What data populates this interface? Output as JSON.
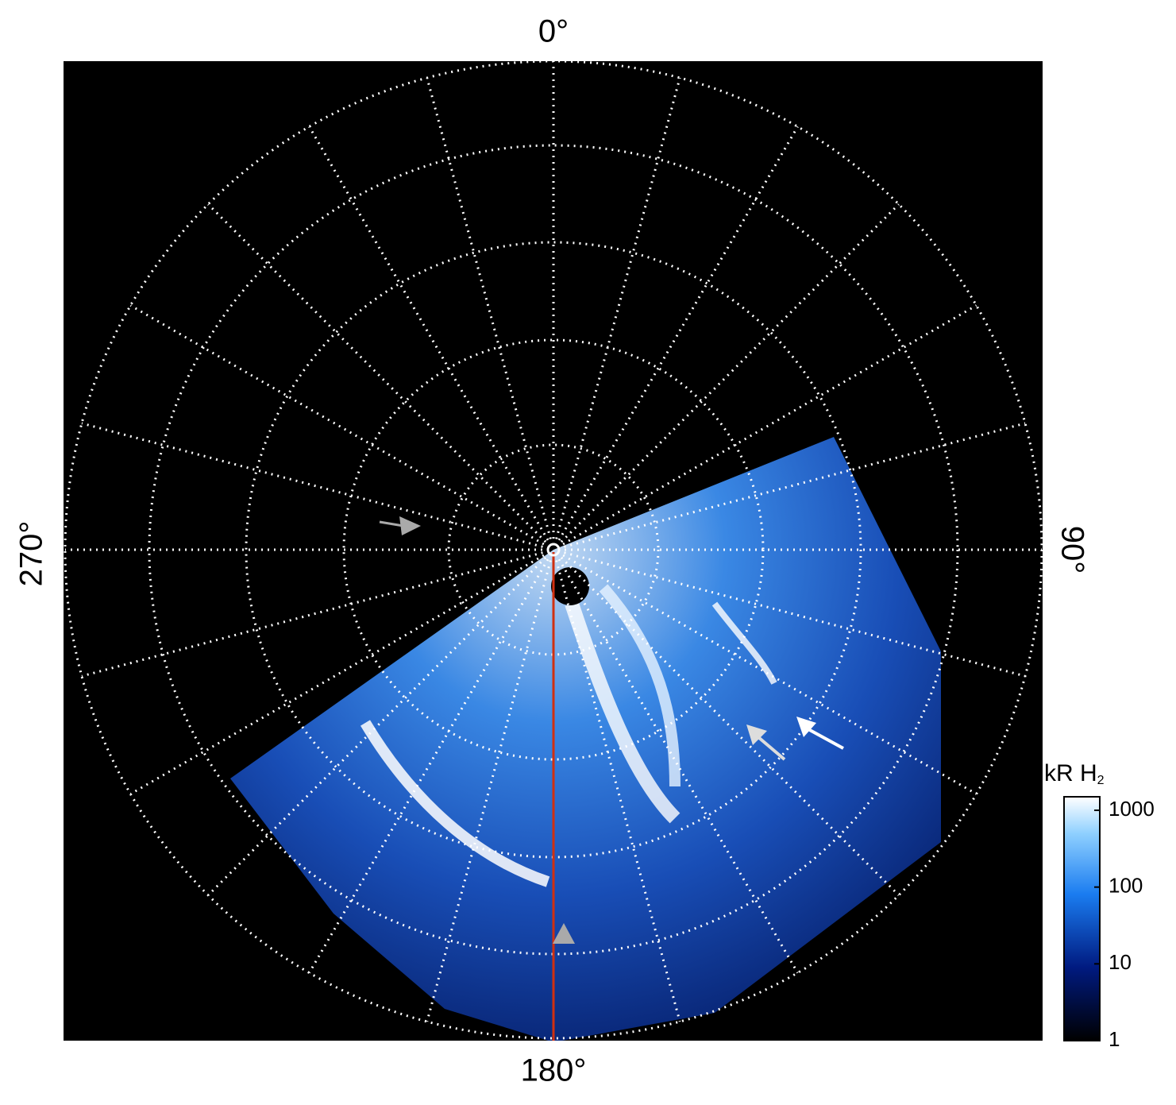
{
  "labels": {
    "top": "0°",
    "right": "90°",
    "bottom": "180°",
    "left": "270°"
  },
  "colorbar": {
    "label": "kR H",
    "label_sub": "2",
    "scale": "log",
    "lim": [
      1,
      1500
    ],
    "ticks": [
      1,
      10,
      100,
      1000
    ]
  }
}
